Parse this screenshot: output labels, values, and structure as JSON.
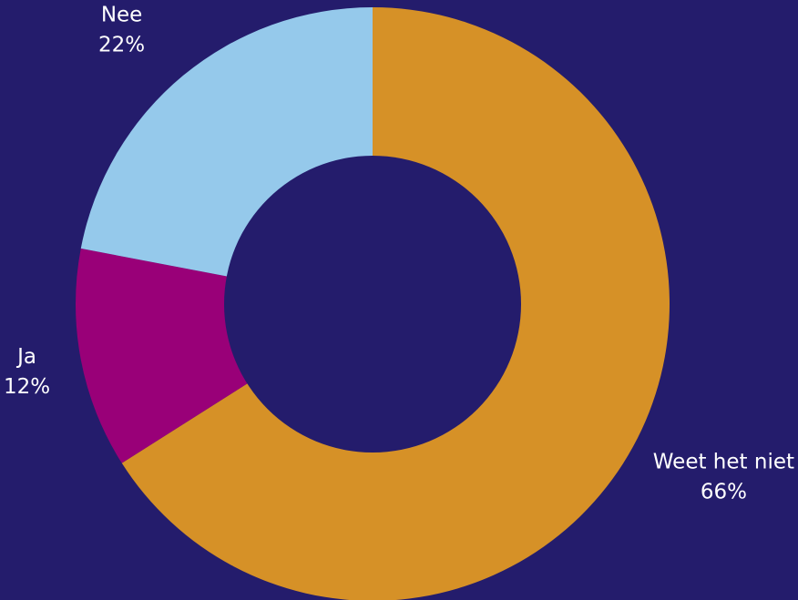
{
  "background_color": "#241c6c",
  "chart_data": {
    "type": "pie",
    "variant": "donut",
    "title": "",
    "slices": [
      {
        "label": "Weet het niet",
        "value": 66,
        "percent_label": "66%",
        "color": "#d69127"
      },
      {
        "label": "Ja",
        "value": 12,
        "percent_label": "12%",
        "color": "#990078"
      },
      {
        "label": "Nee",
        "value": 22,
        "percent_label": "22%",
        "color": "#95c9eb"
      }
    ]
  }
}
